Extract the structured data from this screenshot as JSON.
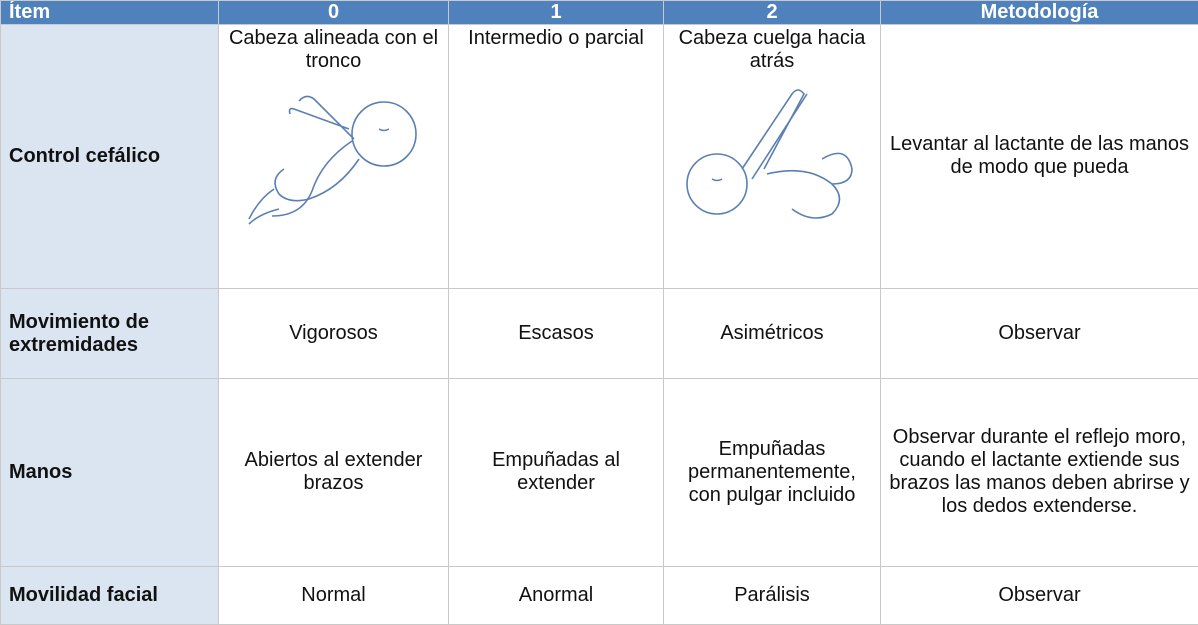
{
  "table": {
    "header": [
      "Ítem",
      "0",
      "1",
      "2",
      "Metodología"
    ],
    "rows": [
      [
        "Control cefálico",
        "Cabeza alineada con el tronco",
        "Intermedio o parcial",
        "Cabeza cuelga hacia atrás",
        "Levantar al lactante de las manos de modo que pueda"
      ],
      [
        "Movimiento de extremidades",
        "Vigorosos",
        "Escasos",
        "Asimétricos",
        "Observar"
      ],
      [
        "Manos",
        "Abiertos al extender brazos",
        "Empuñadas al extender",
        "Empuñadas permanentemente, con pulgar incluido",
        "Observar durante el reflejo moro, cuando el lactante extiende sus brazos las manos deben abrirse y los dedos extenderse."
      ],
      [
        "Movilidad facial",
        "Normal",
        "Anormal",
        "Parálisis",
        "Observar"
      ]
    ]
  }
}
